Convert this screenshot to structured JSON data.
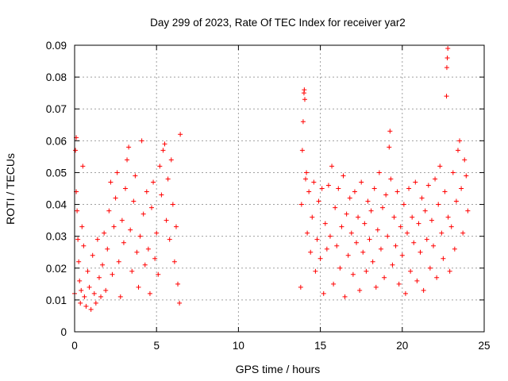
{
  "chart_data": {
    "type": "scatter",
    "title": "Day 299 of 2023, Rate Of TEC Index for receiver yar2",
    "xlabel": "GPS time / hours",
    "ylabel": "ROTI / TECUs",
    "xlim": [
      0,
      25
    ],
    "ylim": [
      0,
      0.09
    ],
    "xticks": [
      0,
      5,
      10,
      15,
      20,
      25
    ],
    "xtick_labels": [
      "0",
      "5",
      "10",
      "15",
      "20",
      "25"
    ],
    "yticks": [
      0,
      0.01,
      0.02,
      0.03,
      0.04,
      0.05,
      0.06,
      0.07,
      0.08,
      0.09
    ],
    "ytick_labels": [
      "0",
      "0.01",
      "0.02",
      "0.03",
      "0.04",
      "0.05",
      "0.06",
      "0.07",
      "0.08",
      "0.09"
    ],
    "grid": true,
    "marker": "plus",
    "color": "#ff0000",
    "series": [
      {
        "name": "ROTI",
        "points": [
          [
            0.0,
            0.012
          ],
          [
            0.05,
            0.057
          ],
          [
            0.1,
            0.061
          ],
          [
            0.1,
            0.044
          ],
          [
            0.15,
            0.038
          ],
          [
            0.2,
            0.029
          ],
          [
            0.25,
            0.022
          ],
          [
            0.3,
            0.016
          ],
          [
            0.35,
            0.009
          ],
          [
            0.4,
            0.013
          ],
          [
            0.45,
            0.033
          ],
          [
            0.5,
            0.052
          ],
          [
            0.55,
            0.027
          ],
          [
            0.6,
            0.011
          ],
          [
            0.7,
            0.008
          ],
          [
            0.8,
            0.019
          ],
          [
            0.9,
            0.014
          ],
          [
            1.0,
            0.007
          ],
          [
            1.1,
            0.024
          ],
          [
            1.2,
            0.012
          ],
          [
            1.3,
            0.009
          ],
          [
            1.4,
            0.029
          ],
          [
            1.5,
            0.017
          ],
          [
            1.6,
            0.011
          ],
          [
            1.7,
            0.021
          ],
          [
            1.8,
            0.031
          ],
          [
            1.9,
            0.013
          ],
          [
            2.0,
            0.026
          ],
          [
            2.1,
            0.038
          ],
          [
            2.2,
            0.047
          ],
          [
            2.3,
            0.018
          ],
          [
            2.4,
            0.033
          ],
          [
            2.5,
            0.042
          ],
          [
            2.6,
            0.05
          ],
          [
            2.7,
            0.022
          ],
          [
            2.8,
            0.011
          ],
          [
            2.9,
            0.035
          ],
          [
            3.0,
            0.028
          ],
          [
            3.1,
            0.045
          ],
          [
            3.2,
            0.054
          ],
          [
            3.3,
            0.058
          ],
          [
            3.4,
            0.032
          ],
          [
            3.5,
            0.019
          ],
          [
            3.6,
            0.041
          ],
          [
            3.7,
            0.049
          ],
          [
            3.8,
            0.025
          ],
          [
            3.9,
            0.014
          ],
          [
            4.0,
            0.03
          ],
          [
            4.1,
            0.06
          ],
          [
            4.2,
            0.037
          ],
          [
            4.3,
            0.021
          ],
          [
            4.4,
            0.044
          ],
          [
            4.5,
            0.026
          ],
          [
            4.6,
            0.012
          ],
          [
            4.7,
            0.039
          ],
          [
            4.8,
            0.047
          ],
          [
            4.9,
            0.023
          ],
          [
            5.0,
            0.031
          ],
          [
            5.1,
            0.018
          ],
          [
            5.2,
            0.052
          ],
          [
            5.3,
            0.043
          ],
          [
            5.4,
            0.057
          ],
          [
            5.5,
            0.059
          ],
          [
            5.6,
            0.035
          ],
          [
            5.7,
            0.048
          ],
          [
            5.8,
            0.029
          ],
          [
            5.9,
            0.054
          ],
          [
            6.0,
            0.04
          ],
          [
            6.1,
            0.022
          ],
          [
            6.2,
            0.033
          ],
          [
            6.3,
            0.015
          ],
          [
            6.4,
            0.009
          ],
          [
            6.45,
            0.062
          ],
          [
            13.8,
            0.014
          ],
          [
            13.85,
            0.04
          ],
          [
            13.9,
            0.057
          ],
          [
            13.95,
            0.066
          ],
          [
            14.0,
            0.075
          ],
          [
            14.02,
            0.076
          ],
          [
            14.05,
            0.073
          ],
          [
            14.1,
            0.048
          ],
          [
            14.15,
            0.05
          ],
          [
            14.2,
            0.031
          ],
          [
            14.3,
            0.044
          ],
          [
            14.4,
            0.025
          ],
          [
            14.5,
            0.036
          ],
          [
            14.6,
            0.047
          ],
          [
            14.7,
            0.019
          ],
          [
            14.8,
            0.029
          ],
          [
            14.9,
            0.041
          ],
          [
            15.0,
            0.023
          ],
          [
            15.1,
            0.045
          ],
          [
            15.2,
            0.012
          ],
          [
            15.3,
            0.034
          ],
          [
            15.4,
            0.026
          ],
          [
            15.5,
            0.046
          ],
          [
            15.6,
            0.03
          ],
          [
            15.7,
            0.052
          ],
          [
            15.8,
            0.015
          ],
          [
            15.9,
            0.039
          ],
          [
            16.0,
            0.027
          ],
          [
            16.1,
            0.045
          ],
          [
            16.2,
            0.02
          ],
          [
            16.3,
            0.033
          ],
          [
            16.4,
            0.049
          ],
          [
            16.5,
            0.011
          ],
          [
            16.6,
            0.037
          ],
          [
            16.7,
            0.024
          ],
          [
            16.8,
            0.042
          ],
          [
            16.9,
            0.031
          ],
          [
            17.0,
            0.018
          ],
          [
            17.1,
            0.044
          ],
          [
            17.2,
            0.028
          ],
          [
            17.3,
            0.036
          ],
          [
            17.4,
            0.013
          ],
          [
            17.5,
            0.047
          ],
          [
            17.6,
            0.025
          ],
          [
            17.7,
            0.034
          ],
          [
            17.8,
            0.019
          ],
          [
            17.9,
            0.041
          ],
          [
            18.0,
            0.029
          ],
          [
            18.1,
            0.038
          ],
          [
            18.2,
            0.022
          ],
          [
            18.3,
            0.045
          ],
          [
            18.4,
            0.014
          ],
          [
            18.5,
            0.032
          ],
          [
            18.6,
            0.05
          ],
          [
            18.7,
            0.026
          ],
          [
            18.8,
            0.039
          ],
          [
            18.9,
            0.017
          ],
          [
            19.0,
            0.043
          ],
          [
            19.1,
            0.03
          ],
          [
            19.2,
            0.058
          ],
          [
            19.25,
            0.063
          ],
          [
            19.3,
            0.048
          ],
          [
            19.4,
            0.021
          ],
          [
            19.5,
            0.036
          ],
          [
            19.6,
            0.027
          ],
          [
            19.7,
            0.044
          ],
          [
            19.8,
            0.015
          ],
          [
            19.9,
            0.033
          ],
          [
            20.0,
            0.024
          ],
          [
            20.1,
            0.04
          ],
          [
            20.2,
            0.012
          ],
          [
            20.3,
            0.031
          ],
          [
            20.4,
            0.045
          ],
          [
            20.5,
            0.019
          ],
          [
            20.6,
            0.036
          ],
          [
            20.7,
            0.028
          ],
          [
            20.8,
            0.047
          ],
          [
            20.9,
            0.016
          ],
          [
            21.0,
            0.034
          ],
          [
            21.1,
            0.025
          ],
          [
            21.2,
            0.042
          ],
          [
            21.3,
            0.013
          ],
          [
            21.4,
            0.038
          ],
          [
            21.5,
            0.029
          ],
          [
            21.6,
            0.046
          ],
          [
            21.7,
            0.02
          ],
          [
            21.8,
            0.035
          ],
          [
            21.9,
            0.027
          ],
          [
            22.0,
            0.048
          ],
          [
            22.1,
            0.017
          ],
          [
            22.2,
            0.04
          ],
          [
            22.3,
            0.052
          ],
          [
            22.4,
            0.031
          ],
          [
            22.5,
            0.023
          ],
          [
            22.6,
            0.044
          ],
          [
            22.7,
            0.074
          ],
          [
            22.72,
            0.083
          ],
          [
            22.75,
            0.086
          ],
          [
            22.78,
            0.089
          ],
          [
            22.8,
            0.036
          ],
          [
            22.9,
            0.019
          ],
          [
            23.0,
            0.033
          ],
          [
            23.1,
            0.05
          ],
          [
            23.2,
            0.026
          ],
          [
            23.3,
            0.041
          ],
          [
            23.4,
            0.057
          ],
          [
            23.5,
            0.06
          ],
          [
            23.6,
            0.045
          ],
          [
            23.7,
            0.031
          ],
          [
            23.8,
            0.054
          ],
          [
            23.9,
            0.049
          ],
          [
            24.0,
            0.038
          ]
        ]
      }
    ]
  }
}
